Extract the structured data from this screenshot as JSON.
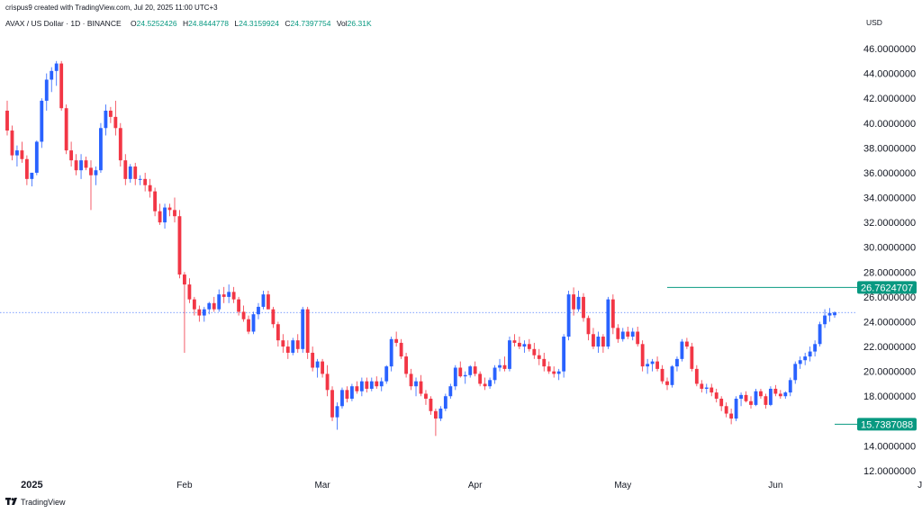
{
  "header": {
    "created_by": "crispus9 created with TradingView.com, Jul 20, 2025 11:00 UTC+3",
    "symbol": "AVAX / US Dollar · 1D · BINANCE",
    "ohlc": [
      {
        "key": "O",
        "value": "24.5252426"
      },
      {
        "key": "H",
        "value": "24.8444778"
      },
      {
        "key": "L",
        "value": "24.3159924"
      },
      {
        "key": "C",
        "value": "24.7397754"
      },
      {
        "key": "Vol",
        "value": "26.31K"
      }
    ],
    "currency": "USD"
  },
  "footer": {
    "brand": "TradingView"
  },
  "colors": {
    "up": "#2962ff",
    "down": "#f23645",
    "line": "#089981",
    "tag_bg": "#089981",
    "last_price_line": "#2962ff"
  },
  "chart_data": {
    "type": "candlestick",
    "title": "",
    "xlabel": "",
    "ylabel": "",
    "ylim": [
      11.0,
      48.0
    ],
    "y_ticks": [
      "46.0000000",
      "44.0000000",
      "42.0000000",
      "40.0000000",
      "38.0000000",
      "36.0000000",
      "34.0000000",
      "32.0000000",
      "30.0000000",
      "28.0000000",
      "26.0000000",
      "24.0000000",
      "22.0000000",
      "20.0000000",
      "18.0000000",
      "16.0000000",
      "14.0000000",
      "12.0000000"
    ],
    "x_ticks": [
      {
        "label": "2025",
        "index": 5,
        "bold": true
      },
      {
        "label": "Feb",
        "index": 36
      },
      {
        "label": "Mar",
        "index": 64
      },
      {
        "label": "Apr",
        "index": 95
      },
      {
        "label": "May",
        "index": 125
      },
      {
        "label": "Jun",
        "index": 156
      },
      {
        "label": "Jul",
        "index": 186
      }
    ],
    "horizontal_levels": [
      {
        "value": 26.7624707,
        "label": "26.7624707",
        "from_index": 134
      },
      {
        "value": 15.7387088,
        "label": "15.7387088",
        "from_index": 168
      }
    ],
    "last_price": 24.7397754,
    "candles": [
      [
        41.0,
        41.8,
        39.0,
        39.4
      ],
      [
        39.4,
        39.8,
        37.0,
        37.4
      ],
      [
        37.4,
        38.2,
        36.5,
        37.8
      ],
      [
        37.8,
        38.5,
        36.8,
        37.1
      ],
      [
        37.1,
        37.4,
        35.0,
        35.5
      ],
      [
        35.5,
        36.0,
        34.9,
        36.0
      ],
      [
        36.0,
        38.6,
        35.8,
        38.5
      ],
      [
        38.5,
        42.0,
        38.0,
        41.8
      ],
      [
        41.8,
        44.0,
        41.0,
        43.5
      ],
      [
        43.5,
        44.5,
        42.5,
        44.2
      ],
      [
        44.2,
        45.0,
        43.0,
        44.8
      ],
      [
        44.8,
        45.0,
        41.0,
        41.2
      ],
      [
        41.2,
        41.5,
        37.5,
        37.8
      ],
      [
        37.8,
        38.5,
        36.5,
        37.0
      ],
      [
        37.0,
        37.5,
        35.8,
        36.2
      ],
      [
        36.2,
        37.5,
        35.5,
        37.0
      ],
      [
        37.0,
        37.3,
        36.2,
        36.4
      ],
      [
        36.4,
        37.0,
        33.0,
        35.8
      ],
      [
        35.8,
        36.5,
        35.0,
        36.2
      ],
      [
        36.2,
        40.0,
        36.0,
        39.6
      ],
      [
        39.6,
        41.5,
        39.0,
        41.0
      ],
      [
        41.0,
        41.3,
        40.0,
        40.5
      ],
      [
        40.5,
        41.8,
        39.0,
        39.6
      ],
      [
        39.6,
        40.0,
        36.5,
        37.0
      ],
      [
        37.0,
        37.5,
        35.0,
        35.5
      ],
      [
        35.5,
        36.7,
        35.2,
        36.5
      ],
      [
        36.5,
        36.8,
        35.0,
        35.5
      ],
      [
        35.5,
        35.8,
        35.0,
        35.5
      ],
      [
        35.5,
        36.0,
        34.5,
        35.0
      ],
      [
        35.0,
        35.5,
        34.0,
        34.5
      ],
      [
        34.5,
        34.8,
        32.5,
        32.9
      ],
      [
        32.9,
        33.5,
        31.8,
        32.0
      ],
      [
        32.0,
        33.5,
        31.5,
        33.2
      ],
      [
        33.2,
        33.5,
        32.5,
        33.0
      ],
      [
        33.0,
        34.0,
        32.0,
        32.5
      ],
      [
        32.5,
        33.0,
        27.5,
        27.8
      ],
      [
        27.8,
        28.0,
        21.5,
        27.0
      ],
      [
        27.0,
        27.5,
        25.5,
        25.8
      ],
      [
        25.8,
        26.0,
        24.5,
        25.0
      ],
      [
        25.0,
        25.3,
        24.0,
        24.5
      ],
      [
        24.5,
        25.2,
        24.0,
        25.0
      ],
      [
        25.0,
        25.6,
        24.6,
        25.5
      ],
      [
        25.5,
        26.0,
        24.8,
        25.0
      ],
      [
        25.0,
        26.6,
        24.8,
        26.2
      ],
      [
        26.2,
        26.8,
        25.5,
        26.0
      ],
      [
        26.0,
        27.0,
        25.5,
        26.4
      ],
      [
        26.4,
        26.8,
        25.5,
        25.8
      ],
      [
        25.8,
        26.0,
        24.5,
        24.8
      ],
      [
        24.8,
        25.3,
        24.0,
        24.2
      ],
      [
        24.2,
        24.5,
        23.0,
        23.2
      ],
      [
        23.2,
        24.8,
        23.0,
        24.6
      ],
      [
        24.6,
        25.5,
        24.2,
        25.2
      ],
      [
        25.2,
        26.5,
        25.0,
        26.2
      ],
      [
        26.2,
        26.5,
        25.0,
        25.0
      ],
      [
        25.0,
        25.2,
        23.5,
        23.8
      ],
      [
        23.8,
        24.0,
        22.0,
        22.5
      ],
      [
        22.5,
        23.0,
        21.5,
        22.0
      ],
      [
        22.0,
        22.5,
        21.0,
        21.5
      ],
      [
        21.5,
        22.7,
        21.3,
        22.5
      ],
      [
        22.5,
        23.0,
        21.5,
        21.8
      ],
      [
        21.8,
        25.2,
        21.5,
        25.0
      ],
      [
        25.0,
        25.2,
        21.0,
        21.5
      ],
      [
        21.5,
        22.0,
        20.0,
        20.3
      ],
      [
        20.3,
        21.0,
        19.5,
        20.8
      ],
      [
        20.8,
        21.0,
        19.5,
        19.8
      ],
      [
        19.8,
        20.5,
        18.0,
        18.5
      ],
      [
        18.5,
        18.8,
        16.0,
        16.3
      ],
      [
        16.3,
        17.5,
        15.3,
        17.2
      ],
      [
        17.2,
        18.7,
        17.0,
        18.5
      ],
      [
        18.5,
        18.8,
        17.5,
        17.8
      ],
      [
        17.8,
        19.0,
        17.6,
        18.8
      ],
      [
        18.8,
        19.2,
        18.2,
        18.4
      ],
      [
        18.4,
        19.5,
        18.0,
        19.2
      ],
      [
        19.2,
        19.5,
        18.3,
        18.6
      ],
      [
        18.6,
        19.5,
        18.4,
        19.2
      ],
      [
        19.2,
        19.6,
        18.6,
        18.8
      ],
      [
        18.8,
        19.5,
        18.4,
        19.2
      ],
      [
        19.2,
        20.5,
        19.0,
        20.4
      ],
      [
        20.4,
        22.8,
        20.0,
        22.6
      ],
      [
        22.6,
        23.2,
        22.0,
        22.3
      ],
      [
        22.3,
        22.6,
        21.0,
        21.2
      ],
      [
        21.2,
        21.5,
        19.5,
        19.8
      ],
      [
        19.8,
        20.2,
        18.5,
        18.8
      ],
      [
        18.8,
        19.5,
        18.0,
        19.2
      ],
      [
        19.2,
        19.7,
        18.0,
        18.2
      ],
      [
        18.2,
        18.5,
        17.3,
        17.8
      ],
      [
        17.8,
        18.0,
        16.5,
        16.8
      ],
      [
        16.8,
        17.0,
        14.8,
        16.2
      ],
      [
        16.2,
        17.2,
        16.0,
        17.0
      ],
      [
        17.0,
        18.2,
        16.8,
        18.0
      ],
      [
        18.0,
        19.0,
        17.8,
        18.8
      ],
      [
        18.8,
        20.5,
        18.5,
        20.3
      ],
      [
        20.3,
        20.8,
        19.5,
        19.6
      ],
      [
        19.6,
        20.0,
        19.0,
        19.7
      ],
      [
        19.7,
        20.5,
        19.5,
        20.4
      ],
      [
        20.4,
        20.8,
        19.6,
        19.8
      ],
      [
        19.8,
        20.0,
        18.8,
        19.0
      ],
      [
        19.0,
        19.5,
        18.5,
        18.8
      ],
      [
        18.8,
        19.5,
        18.6,
        19.3
      ],
      [
        19.3,
        20.5,
        19.0,
        20.3
      ],
      [
        20.3,
        21.0,
        20.0,
        20.5
      ],
      [
        20.5,
        21.2,
        20.0,
        20.2
      ],
      [
        20.2,
        22.8,
        20.0,
        22.5
      ],
      [
        22.5,
        23.0,
        22.0,
        22.3
      ],
      [
        22.3,
        22.8,
        21.8,
        22.0
      ],
      [
        22.0,
        22.5,
        21.5,
        22.2
      ],
      [
        22.2,
        22.6,
        21.6,
        21.8
      ],
      [
        21.8,
        22.3,
        21.0,
        21.3
      ],
      [
        21.3,
        21.8,
        20.5,
        21.0
      ],
      [
        21.0,
        21.5,
        20.0,
        20.4
      ],
      [
        20.4,
        20.8,
        19.8,
        20.0
      ],
      [
        20.0,
        20.4,
        19.5,
        19.8
      ],
      [
        19.8,
        20.2,
        19.3,
        20.0
      ],
      [
        20.0,
        23.0,
        19.5,
        22.8
      ],
      [
        22.8,
        26.5,
        22.5,
        26.2
      ],
      [
        26.2,
        26.76,
        24.5,
        25.0
      ],
      [
        25.0,
        26.5,
        24.8,
        26.0
      ],
      [
        26.0,
        26.3,
        24.0,
        24.3
      ],
      [
        24.3,
        24.5,
        22.5,
        23.0
      ],
      [
        23.0,
        23.5,
        21.8,
        22.0
      ],
      [
        22.0,
        23.2,
        21.5,
        22.8
      ],
      [
        22.8,
        23.0,
        21.5,
        22.0
      ],
      [
        22.0,
        26.0,
        21.8,
        25.8
      ],
      [
        25.8,
        26.2,
        23.0,
        23.5
      ],
      [
        23.5,
        23.8,
        22.3,
        22.6
      ],
      [
        22.6,
        23.5,
        22.4,
        23.2
      ],
      [
        23.2,
        23.6,
        22.6,
        22.8
      ],
      [
        22.8,
        23.5,
        22.5,
        23.2
      ],
      [
        23.2,
        23.6,
        22.0,
        22.2
      ],
      [
        22.2,
        22.5,
        20.0,
        20.4
      ],
      [
        20.4,
        21.0,
        19.8,
        20.6
      ],
      [
        20.6,
        21.0,
        20.0,
        20.8
      ],
      [
        20.8,
        21.2,
        20.0,
        20.2
      ],
      [
        20.2,
        20.5,
        19.0,
        19.2
      ],
      [
        19.2,
        19.5,
        18.5,
        18.9
      ],
      [
        18.9,
        20.5,
        18.7,
        20.4
      ],
      [
        20.4,
        21.2,
        20.0,
        21.0
      ],
      [
        21.0,
        22.6,
        20.8,
        22.4
      ],
      [
        22.4,
        22.7,
        21.8,
        22.0
      ],
      [
        22.0,
        22.3,
        20.0,
        20.2
      ],
      [
        20.2,
        20.5,
        18.8,
        19.0
      ],
      [
        19.0,
        19.3,
        18.3,
        18.6
      ],
      [
        18.6,
        19.0,
        18.2,
        18.7
      ],
      [
        18.7,
        19.0,
        18.0,
        18.3
      ],
      [
        18.3,
        18.6,
        17.5,
        17.8
      ],
      [
        17.8,
        18.0,
        16.8,
        17.2
      ],
      [
        17.2,
        17.5,
        16.3,
        16.6
      ],
      [
        16.6,
        17.0,
        15.74,
        16.2
      ],
      [
        16.2,
        18.0,
        16.0,
        17.8
      ],
      [
        17.8,
        18.3,
        17.2,
        18.1
      ],
      [
        18.1,
        18.4,
        17.5,
        17.6
      ],
      [
        17.6,
        18.0,
        17.0,
        17.3
      ],
      [
        17.3,
        18.6,
        17.2,
        18.4
      ],
      [
        18.4,
        18.6,
        17.8,
        18.0
      ],
      [
        18.0,
        18.2,
        17.0,
        17.3
      ],
      [
        17.3,
        18.8,
        17.2,
        18.6
      ],
      [
        18.6,
        18.9,
        18.0,
        18.2
      ],
      [
        18.2,
        18.5,
        17.8,
        18.0
      ],
      [
        18.0,
        18.4,
        17.8,
        18.3
      ],
      [
        18.3,
        19.5,
        18.0,
        19.3
      ],
      [
        19.3,
        20.8,
        19.0,
        20.6
      ],
      [
        20.6,
        21.2,
        20.2,
        20.9
      ],
      [
        20.9,
        21.5,
        20.5,
        21.2
      ],
      [
        21.2,
        22.0,
        20.8,
        21.6
      ],
      [
        21.6,
        22.5,
        21.2,
        22.2
      ],
      [
        22.2,
        24.0,
        22.0,
        23.8
      ],
      [
        23.8,
        25.0,
        23.5,
        24.5
      ],
      [
        24.5,
        25.1,
        24.0,
        24.7
      ],
      [
        24.5252426,
        24.8444778,
        24.3159924,
        24.7397754
      ]
    ]
  }
}
